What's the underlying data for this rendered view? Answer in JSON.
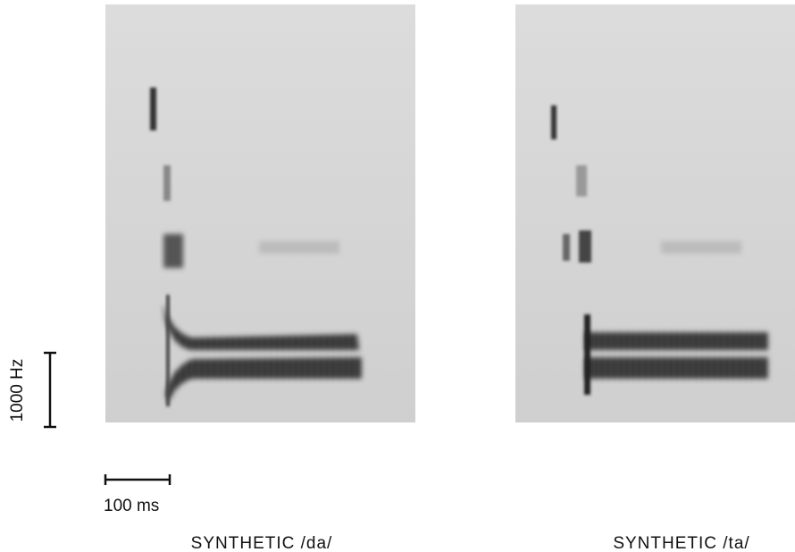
{
  "scale": {
    "frequency": "1000 Hz",
    "time": "100 ms"
  },
  "panels": [
    {
      "caption": "SYNTHETIC /da/"
    },
    {
      "caption": "SYNTHETIC /ta/"
    }
  ]
}
